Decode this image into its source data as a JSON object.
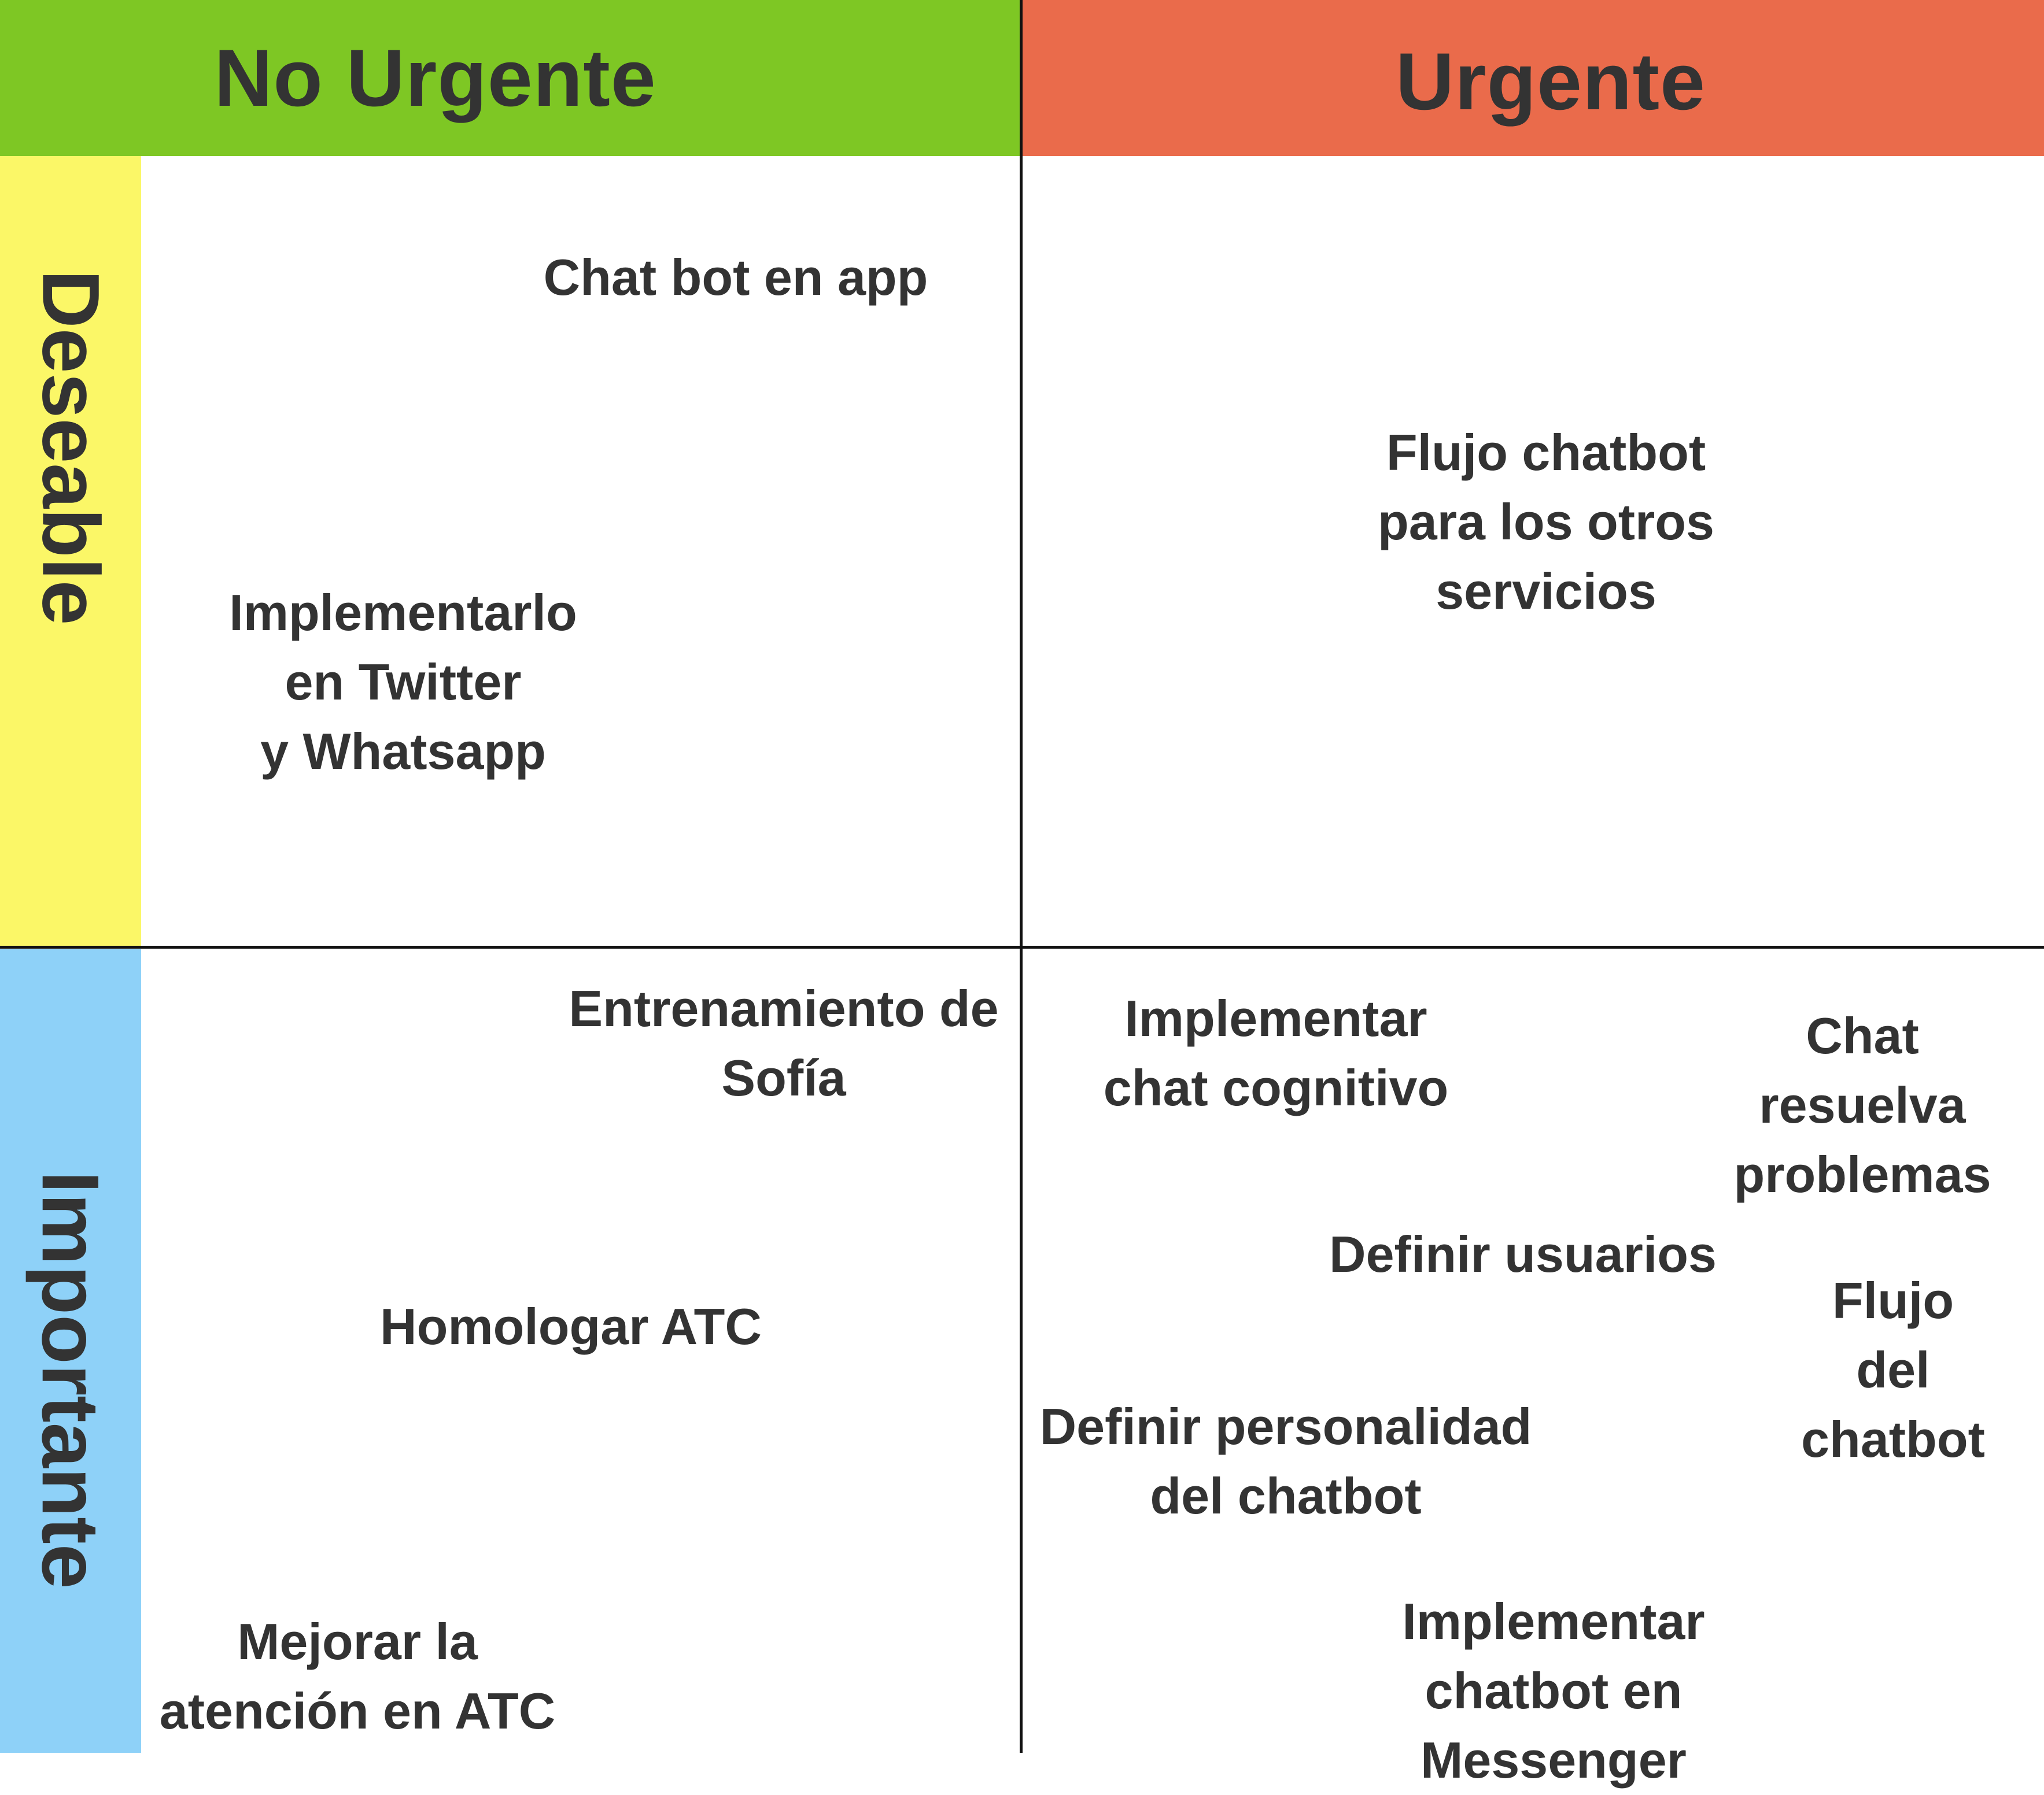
{
  "columns": {
    "left": "No Urgente",
    "right": "Urgente"
  },
  "rows": {
    "top": "Deseable",
    "bottom": "Importante"
  },
  "colors": {
    "no_urgente": "#7ec724",
    "urgente": "#ea6b4b",
    "deseable": "#fbf767",
    "importante": "#8ed1f8",
    "text": "#333333",
    "grid_line": "#111111"
  },
  "quadrants": {
    "deseable_no_urgente": [
      "Chat bot en app",
      "Implementarlo\nen Twitter\ny Whatsapp"
    ],
    "deseable_urgente": [
      "Flujo chatbot\npara los otros\nservicios"
    ],
    "importante_no_urgente": [
      "Entrenamiento de\nSofía",
      "Homologar ATC",
      "Mejorar la\natención en ATC"
    ],
    "importante_urgente": [
      "Implementar\nchat cognitivo",
      "Chat resuelva\nproblemas",
      "Definir usuarios",
      "Flujo del\nchatbot",
      "Definir personalidad\ndel chatbot",
      "Implementar\nchatbot en Messenger"
    ]
  }
}
